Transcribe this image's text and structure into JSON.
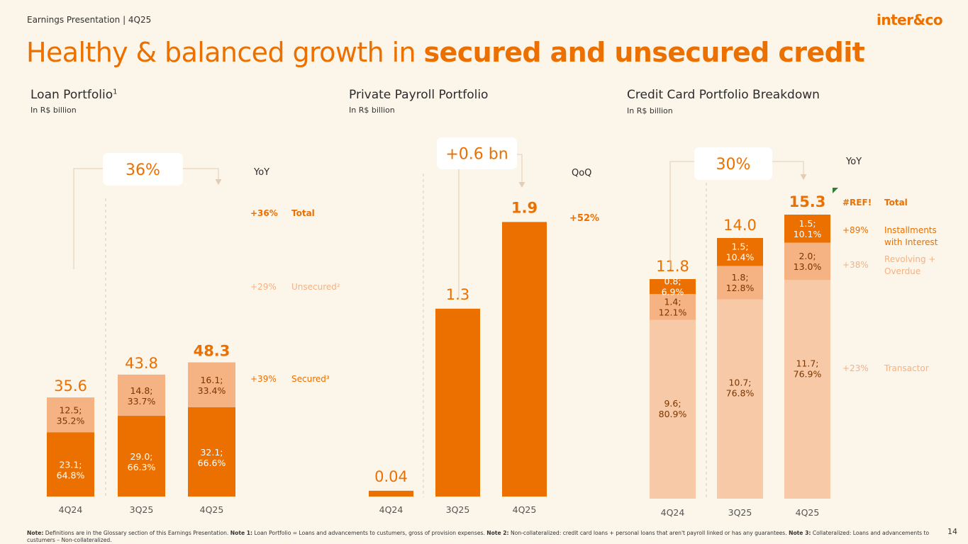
{
  "header": {
    "subtitle": "Earnings Presentation | 4Q25",
    "logo": "inter&co",
    "title_regular": "Healthy & balanced growth in ",
    "title_bold": "secured and unsecured credit"
  },
  "colors": {
    "orange": "#EC7000",
    "medium": "#F5B282",
    "light": "#F8C9A6",
    "background": "#FBF5EA"
  },
  "panels": {
    "loan": {
      "title": "Loan Portfolio",
      "title_sup": "1",
      "subtitle": "In R$ billion"
    },
    "payroll": {
      "title": "Private Payroll Portfolio",
      "subtitle": "In R$ billion"
    },
    "card": {
      "title": "Credit Card Portfolio Breakdown",
      "subtitle": "In R$ billion"
    }
  },
  "chart_data": [
    {
      "type": "bar",
      "stacked": true,
      "title": "Loan Portfolio",
      "unit": "R$ billion",
      "categories": [
        "4Q24",
        "3Q25",
        "4Q25"
      ],
      "totals": [
        "35.6",
        "43.8",
        "48.3"
      ],
      "series": [
        {
          "name": "Secured",
          "values": [
            23.1,
            29.0,
            32.1
          ],
          "labels": [
            "23.1;\n64.8%",
            "29.0;\n66.3%",
            "32.1;\n66.6%"
          ]
        },
        {
          "name": "Unsecured",
          "values": [
            12.5,
            14.8,
            16.1
          ],
          "labels": [
            "12.5;\n35.2%",
            "14.8;\n33.7%",
            "16.1;\n33.4%"
          ]
        }
      ],
      "growth_callout": "36%",
      "growth_period": "YoY",
      "legend": [
        {
          "change": "+36%",
          "label": "Total"
        },
        {
          "change": "+29%",
          "label": "Unsecured²"
        },
        {
          "change": "+39%",
          "label": "Secured³"
        }
      ]
    },
    {
      "type": "bar",
      "title": "Private Payroll Portfolio",
      "unit": "R$ billion",
      "categories": [
        "4Q24",
        "3Q25",
        "4Q25"
      ],
      "values": [
        0.04,
        1.3,
        1.9
      ],
      "value_labels": [
        "0.04",
        "1.3",
        "1.9"
      ],
      "growth_callout": "+0.6 bn",
      "growth_period": "QoQ",
      "growth_change": "+52%"
    },
    {
      "type": "bar",
      "stacked": true,
      "title": "Credit Card Portfolio Breakdown",
      "unit": "R$ billion",
      "categories": [
        "4Q24",
        "3Q25",
        "4Q25"
      ],
      "totals": [
        "11.8",
        "14.0",
        "15.3"
      ],
      "series": [
        {
          "name": "Transactor",
          "values": [
            9.6,
            10.7,
            11.7
          ],
          "labels": [
            "9.6;\n80.9%",
            "10.7;\n76.8%",
            "11.7;\n76.9%"
          ]
        },
        {
          "name": "Revolving + Overdue",
          "values": [
            1.4,
            1.8,
            2.0
          ],
          "labels": [
            "1.4;\n12.1%",
            "1.8;\n12.8%",
            "2.0;\n13.0%"
          ]
        },
        {
          "name": "Installments with Interest",
          "values": [
            0.8,
            1.5,
            1.5
          ],
          "labels": [
            "0.8;\n6.9%",
            "1.5;\n10.4%",
            "1.5;\n10.1%"
          ]
        }
      ],
      "growth_callout": "30%",
      "growth_period": "YoY",
      "legend": [
        {
          "change": "#REF!",
          "label": "Total"
        },
        {
          "change": "+89%",
          "label": "Installments\nwith Interest"
        },
        {
          "change": "+38%",
          "label": "Revolving +\nOverdue"
        },
        {
          "change": "+23%",
          "label": "Transactor"
        }
      ]
    }
  ],
  "footer": {
    "note_html": "<b>Note:</b> Definitions are in the Glossary section of this Earnings Presentation. <b>Note 1:</b> Loan Portfolio = Loans and advancements to custumers, gross of provision expenses. <b>Note 2:</b> Non-collateralized: credit card loans + personal loans that aren't payroll linked or has any guarantees. <b>Note 3:</b> Collateralized: Loans and advancements to custumers – Non-collateralized.",
    "page_number": "14"
  }
}
